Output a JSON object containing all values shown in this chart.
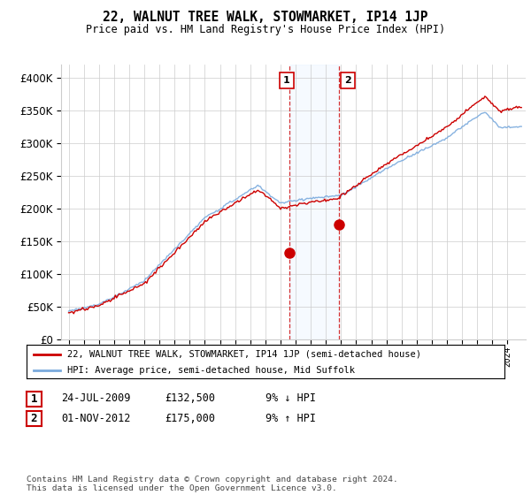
{
  "title": "22, WALNUT TREE WALK, STOWMARKET, IP14 1JP",
  "subtitle": "Price paid vs. HM Land Registry's House Price Index (HPI)",
  "legend_line1": "22, WALNUT TREE WALK, STOWMARKET, IP14 1JP (semi-detached house)",
  "legend_line2": "HPI: Average price, semi-detached house, Mid Suffolk",
  "annotation1_label": "1",
  "annotation1_date": "24-JUL-2009",
  "annotation1_price": "£132,500",
  "annotation1_hpi": "9% ↓ HPI",
  "annotation2_label": "2",
  "annotation2_date": "01-NOV-2012",
  "annotation2_price": "£175,000",
  "annotation2_hpi": "9% ↑ HPI",
  "footer": "Contains HM Land Registry data © Crown copyright and database right 2024.\nThis data is licensed under the Open Government Licence v3.0.",
  "price_color": "#cc0000",
  "hpi_color": "#7aaadd",
  "sale1_x": 2009.56,
  "sale1_y": 132500,
  "sale2_x": 2012.84,
  "sale2_y": 175000,
  "ylim": [
    0,
    420000
  ],
  "xlim_start": 1994.5,
  "xlim_end": 2025.2,
  "background_color": "#ffffff",
  "grid_color": "#cccccc",
  "shade_color": "#ddeeff"
}
